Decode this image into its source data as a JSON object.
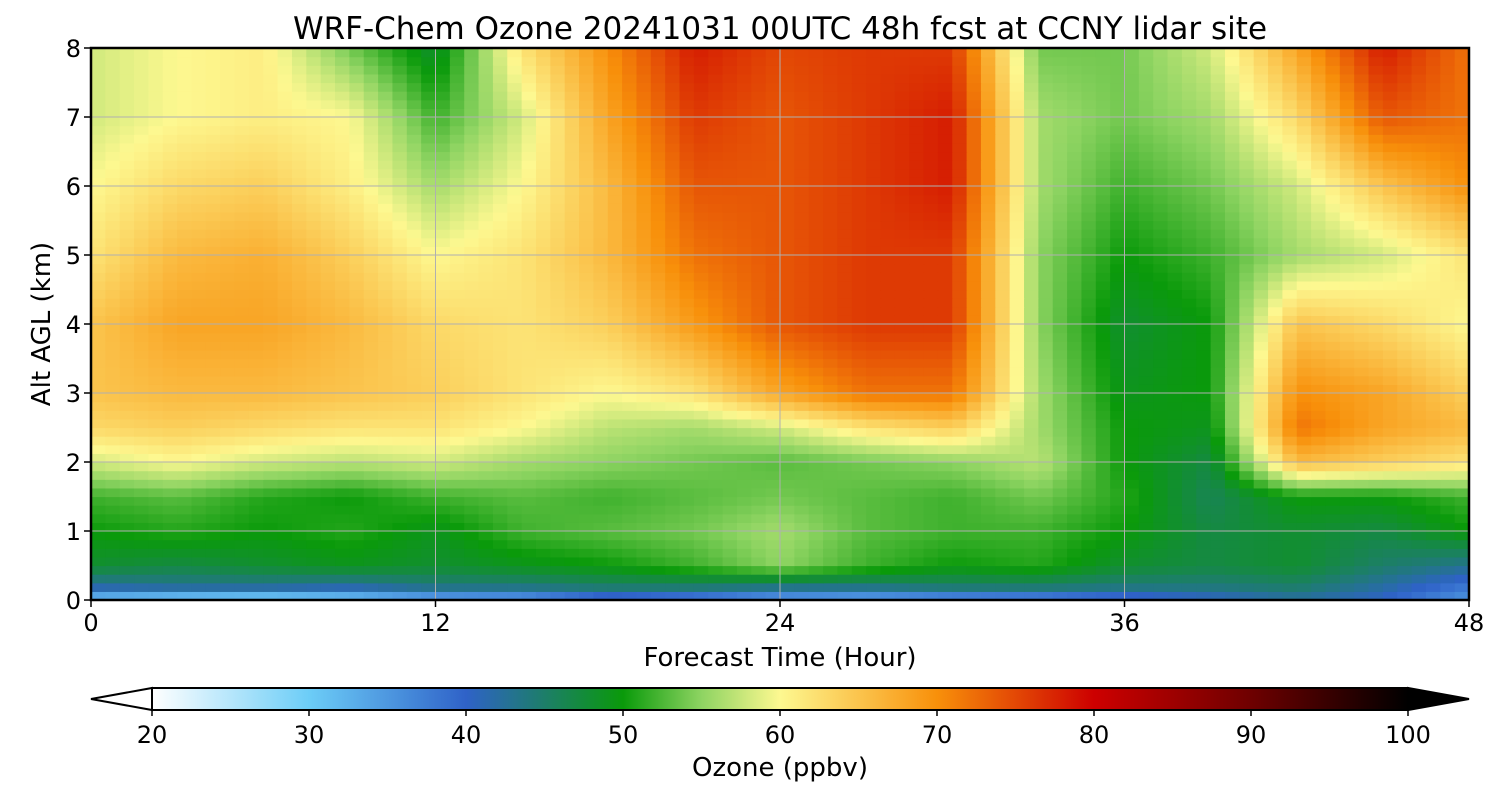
{
  "chart_data": {
    "type": "heatmap",
    "title": "WRF-Chem Ozone  20241031 00UTC 48h fcst at CCNY lidar site",
    "xlabel": "Forecast Time (Hour)",
    "ylabel": "Alt AGL (km)",
    "xlim": [
      0,
      48
    ],
    "ylim": [
      0,
      8
    ],
    "x_ticks": [
      0,
      12,
      24,
      36,
      48
    ],
    "y_ticks": [
      0,
      1,
      2,
      3,
      4,
      5,
      6,
      7,
      8
    ],
    "grid": true,
    "x": [
      0,
      3,
      6,
      9,
      12,
      15,
      18,
      21,
      24,
      27,
      30,
      33,
      36,
      39,
      42,
      45,
      48
    ],
    "y": [
      0,
      0.2,
      0.5,
      1,
      1.5,
      2,
      2.5,
      3,
      4,
      5,
      6,
      7,
      8
    ],
    "z": [
      [
        30,
        28,
        27,
        29,
        32,
        33,
        38,
        36,
        33,
        32,
        34,
        35,
        38,
        40,
        42,
        40,
        35
      ],
      [
        42,
        43,
        43,
        42,
        44,
        44,
        45,
        45,
        44,
        44,
        45,
        45,
        44,
        44,
        45,
        42,
        38
      ],
      [
        48,
        47,
        48,
        49,
        48,
        49,
        50,
        52,
        55,
        52,
        50,
        51,
        48,
        47,
        48,
        45,
        43
      ],
      [
        50,
        51,
        50,
        51,
        49,
        52,
        53,
        54,
        56,
        53,
        52,
        52,
        50,
        47,
        48,
        47,
        50
      ],
      [
        52,
        53,
        51,
        50,
        52,
        53,
        52,
        53,
        54,
        53,
        52,
        54,
        51,
        46,
        50,
        50,
        52
      ],
      [
        58,
        60,
        58,
        57,
        58,
        56,
        55,
        54,
        53,
        54,
        55,
        57,
        50,
        47,
        66,
        64,
        62
      ],
      [
        63,
        64,
        63,
        62,
        62,
        60,
        57,
        56,
        58,
        62,
        64,
        56,
        50,
        49,
        72,
        68,
        66
      ],
      [
        65,
        66,
        66,
        65,
        64,
        62,
        60,
        62,
        68,
        72,
        72,
        56,
        49,
        50,
        70,
        68,
        64
      ],
      [
        65,
        68,
        68,
        66,
        63,
        62,
        64,
        69,
        74,
        76,
        76,
        55,
        48,
        50,
        65,
        63,
        60
      ],
      [
        62,
        66,
        67,
        64,
        60,
        62,
        66,
        72,
        74,
        76,
        76,
        55,
        50,
        52,
        56,
        58,
        62
      ],
      [
        60,
        63,
        64,
        61,
        56,
        60,
        66,
        74,
        74,
        76,
        78,
        56,
        52,
        54,
        58,
        65,
        70
      ],
      [
        58,
        60,
        61,
        60,
        52,
        58,
        68,
        76,
        74,
        76,
        78,
        56,
        54,
        56,
        63,
        74,
        72
      ],
      [
        58,
        60,
        61,
        54,
        48,
        62,
        70,
        78,
        75,
        76,
        76,
        54,
        54,
        58,
        68,
        78,
        72
      ]
    ],
    "colorbar": {
      "label": "Ozone  (ppbv)",
      "min": 20,
      "max": 100,
      "ticks": [
        20,
        30,
        40,
        50,
        60,
        70,
        80,
        90,
        100
      ],
      "extend": "both",
      "colormap": [
        [
          20,
          "#ffffff"
        ],
        [
          30,
          "#6ccdf7"
        ],
        [
          40,
          "#2f62c8"
        ],
        [
          50,
          "#0a9a0a"
        ],
        [
          55,
          "#8ed462"
        ],
        [
          60,
          "#fdf890"
        ],
        [
          70,
          "#f8900a"
        ],
        [
          80,
          "#cd0000"
        ],
        [
          90,
          "#6e0000"
        ],
        [
          100,
          "#000000"
        ]
      ]
    }
  }
}
